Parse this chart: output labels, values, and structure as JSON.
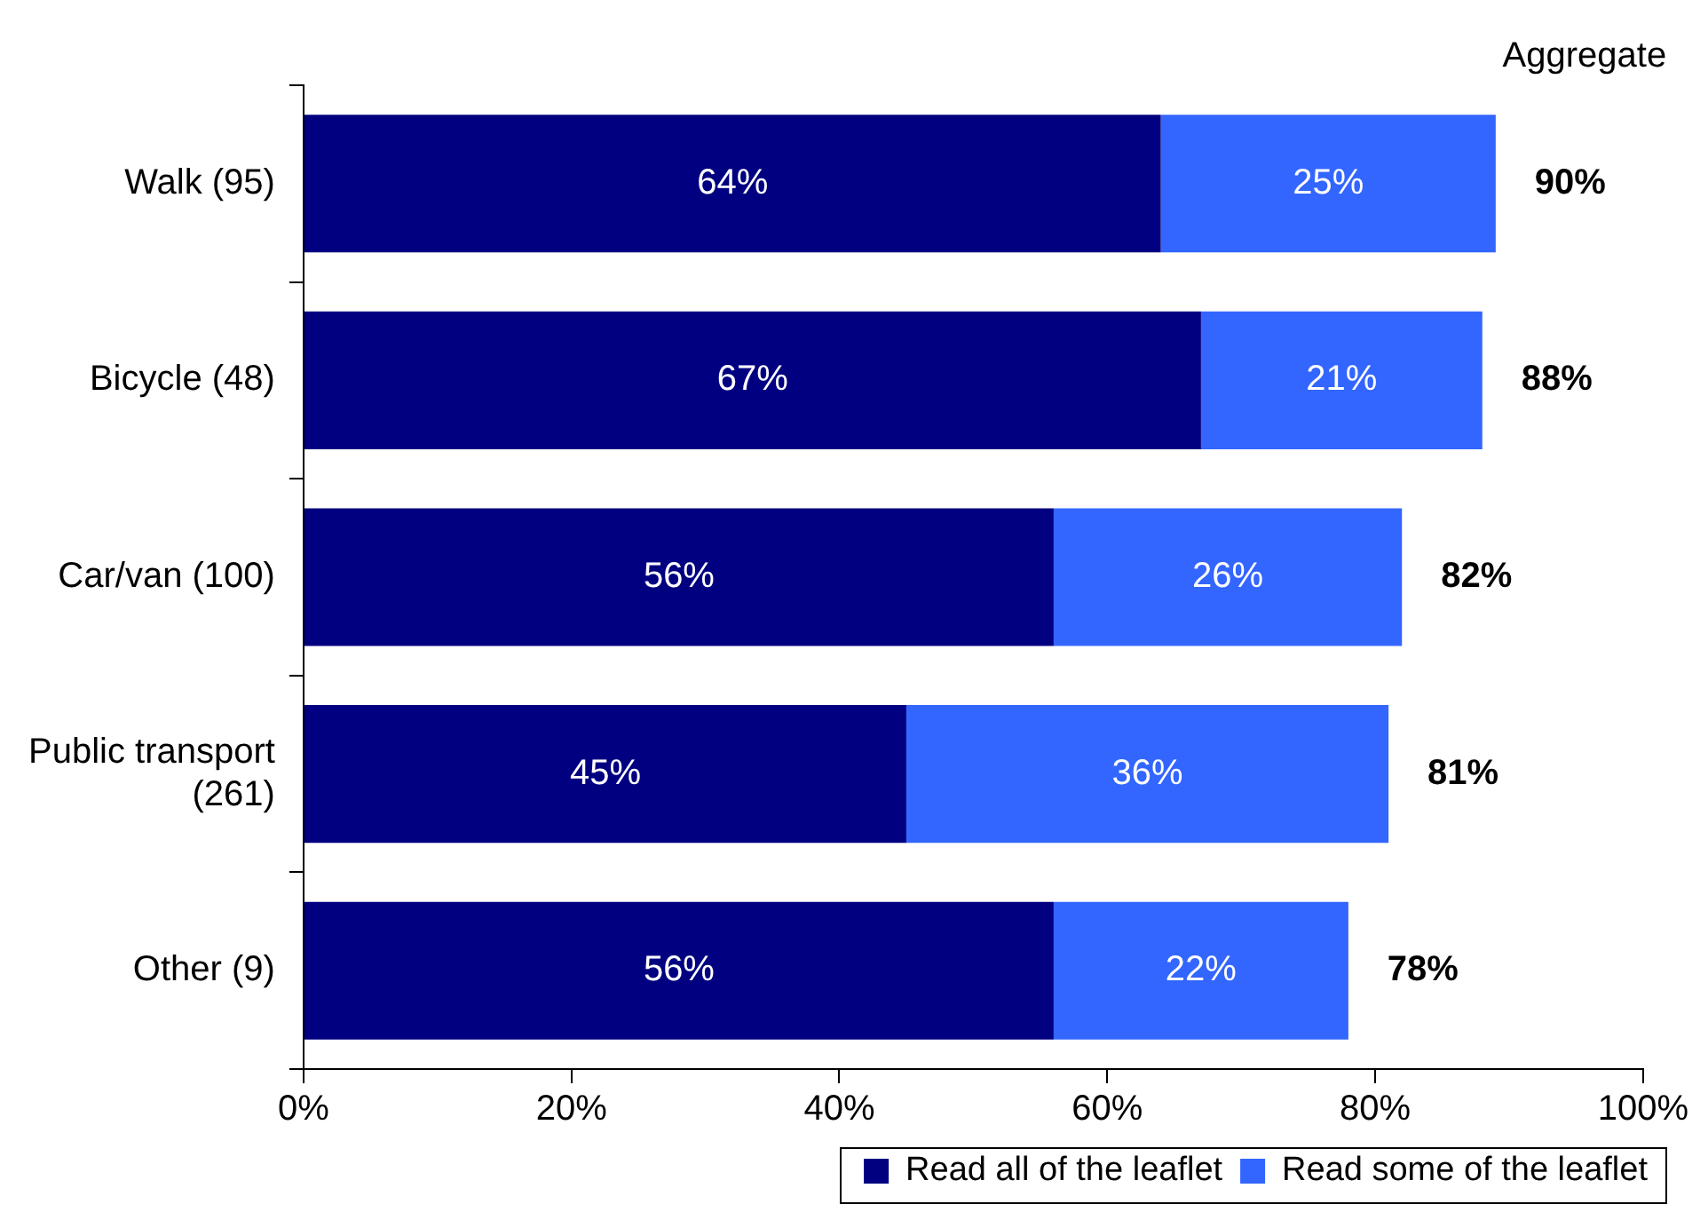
{
  "chart_data": {
    "type": "bar",
    "orientation": "horizontal",
    "stacked": true,
    "categories": [
      "Walk (95)",
      "Bicycle (48)",
      "Car/van (100)",
      "Public transport (261)",
      "Other (9)"
    ],
    "series": [
      {
        "name": "Read all of the leaflet",
        "color": "#000080",
        "values": [
          64,
          67,
          56,
          45,
          56
        ],
        "value_labels": [
          "64%",
          "67%",
          "56%",
          "45%",
          "56%"
        ]
      },
      {
        "name": "Read some of the leaflet",
        "color": "#3366ff",
        "values": [
          25,
          21,
          26,
          36,
          22
        ],
        "value_labels": [
          "25%",
          "21%",
          "26%",
          "36%",
          "22%"
        ]
      }
    ],
    "totals": [
      "90%",
      "88%",
      "82%",
      "81%",
      "78%"
    ],
    "annotations": [
      "Aggregate"
    ],
    "xlim": [
      0,
      100
    ],
    "xticks": [
      {
        "value": 0,
        "label": "0%"
      },
      {
        "value": 20,
        "label": "20%"
      },
      {
        "value": 40,
        "label": "40%"
      },
      {
        "value": 60,
        "label": "60%"
      },
      {
        "value": 80,
        "label": "80%"
      },
      {
        "value": 100,
        "label": "100%"
      }
    ],
    "grid": false,
    "legend": "bottom"
  }
}
